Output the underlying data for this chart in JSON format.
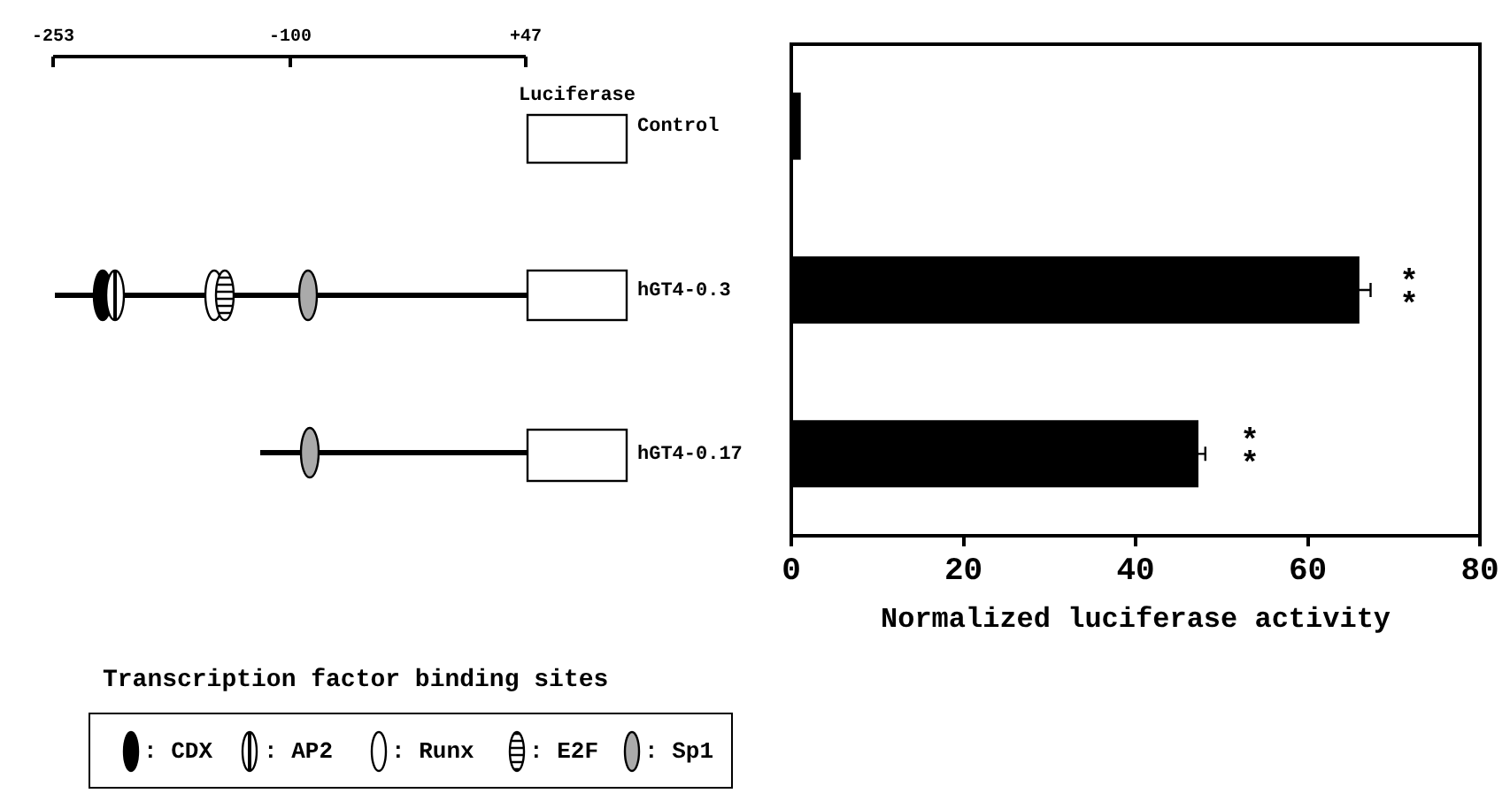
{
  "chart_data": {
    "type": "bar",
    "orientation": "horizontal",
    "xlabel": "Normalized luciferase activity",
    "categories": [
      "Control",
      "hGT4-0.3",
      "hGT4-0.17"
    ],
    "values": [
      1.1,
      66,
      47.3
    ],
    "errors": [
      null,
      1.3,
      0.8
    ],
    "color": "#000000",
    "xlim": [
      0,
      80
    ],
    "xticks": [
      0,
      20,
      40,
      60,
      80
    ],
    "grid": false,
    "legend": false,
    "annotations": [
      "Luciferase",
      "-253",
      "-100",
      "+47",
      "Transcription factor binding sites",
      ": CDX",
      ": AP2",
      ": Runx",
      ": E2F",
      ": Sp1",
      "**",
      "**"
    ]
  }
}
